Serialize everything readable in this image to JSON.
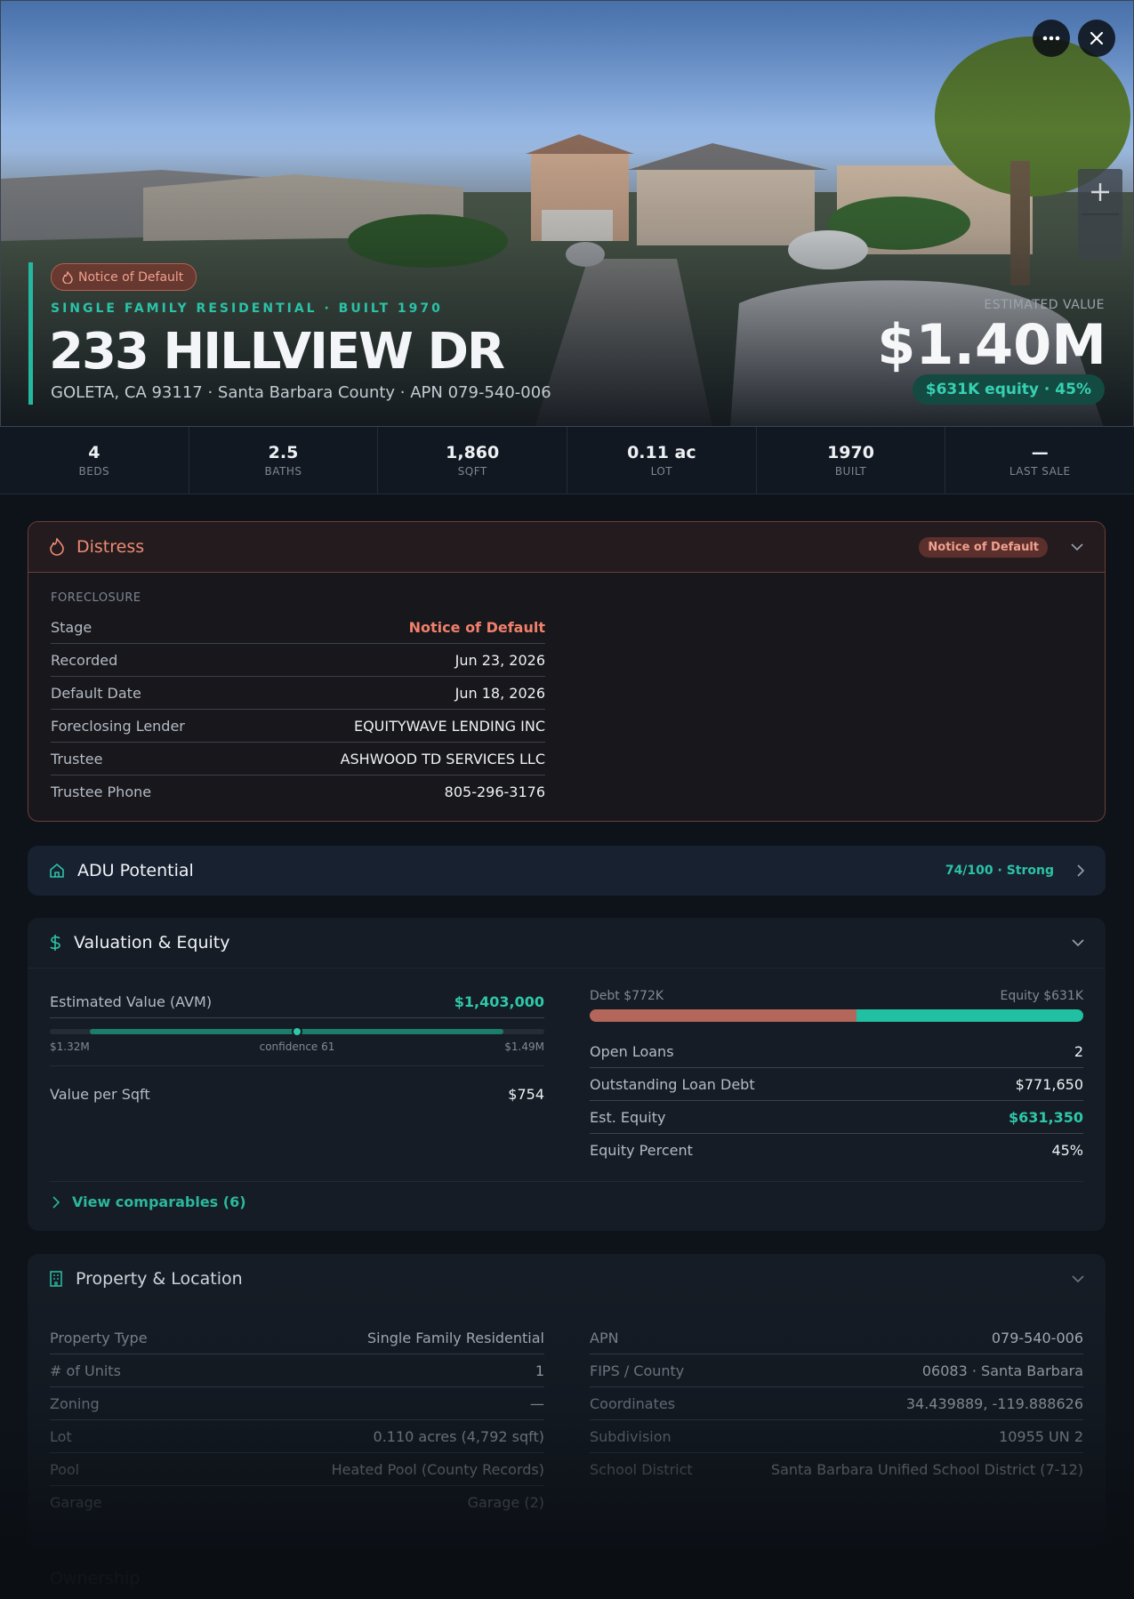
{
  "hero": {
    "badge": "Notice of Default",
    "subtitle": "SINGLE FAMILY RESIDENTIAL · BUILT 1970",
    "address": "233 HILLVIEW DR",
    "location": "GOLETA, CA 93117 · Santa Barbara County · APN 079-540-006",
    "value_label": "ESTIMATED VALUE",
    "value": "$1.40M",
    "equity": "$631K equity · 45%"
  },
  "stats": [
    {
      "value": "4",
      "label": "BEDS"
    },
    {
      "value": "2.5",
      "label": "BATHS"
    },
    {
      "value": "1,860",
      "label": "SQFT"
    },
    {
      "value": "0.11 ac",
      "label": "LOT"
    },
    {
      "value": "1970",
      "label": "BUILT"
    },
    {
      "value": "—",
      "label": "LAST SALE"
    }
  ],
  "distress": {
    "title": "Distress",
    "badge": "Notice of Default",
    "section": "FORECLOSURE",
    "rows": [
      [
        "Stage",
        "Notice of Default"
      ],
      [
        "Recorded",
        "Jun 23, 2026"
      ],
      [
        "Default Date",
        "Jun 18, 2026"
      ],
      [
        "Foreclosing Lender",
        "EQUITYWAVE LENDING INC"
      ],
      [
        "Trustee",
        "ASHWOOD TD SERVICES LLC"
      ],
      [
        "Trustee Phone",
        "805-296-3176"
      ]
    ]
  },
  "adu": {
    "title": "ADU Potential",
    "score": "74/100 · Strong"
  },
  "valuation": {
    "title": "Valuation & Equity",
    "avm_label": "Estimated Value (AVM)",
    "avm_value": "$1,403,000",
    "range_low": "$1.32M",
    "confidence": "confidence 61",
    "range_high": "$1.49M",
    "sqft_label": "Value per Sqft",
    "sqft_value": "$754",
    "debt_label": "Debt $772K",
    "equity_label": "Equity $631K",
    "rows": [
      [
        "Open Loans",
        "2"
      ],
      [
        "Outstanding Loan Debt",
        "$771,650"
      ],
      [
        "Est. Equity",
        "$631,350"
      ],
      [
        "Equity Percent",
        "45%"
      ]
    ],
    "comparables": "View comparables (6)"
  },
  "property": {
    "title": "Property & Location",
    "left_rows": [
      [
        "Property Type",
        "Single Family Residential"
      ],
      [
        "# of Units",
        "1"
      ],
      [
        "Zoning",
        "—"
      ],
      [
        "Lot",
        "0.110 acres (4,792 sqft)"
      ],
      [
        "Pool",
        "Heated Pool (County Records)"
      ],
      [
        "Garage",
        "Garage (2)"
      ]
    ],
    "right_rows": [
      [
        "APN",
        "079-540-006"
      ],
      [
        "FIPS / County",
        "06083 · Santa Barbara"
      ],
      [
        "Coordinates",
        "34.439889, -119.888626"
      ],
      [
        "Subdivision",
        "10955 UN 2"
      ],
      [
        "School District",
        "Santa Barbara Unified School District (7-12)"
      ]
    ]
  },
  "ownership": {
    "title": "Ownership"
  }
}
